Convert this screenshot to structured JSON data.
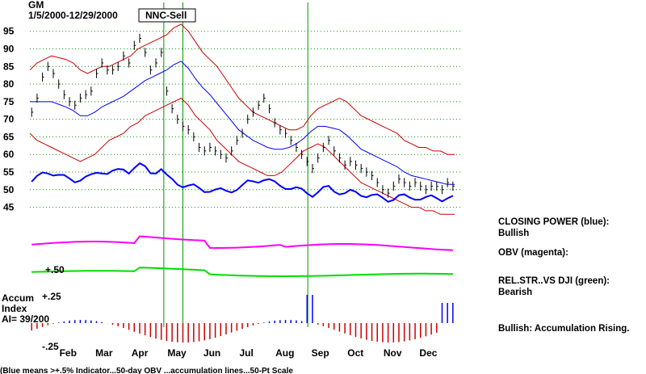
{
  "chart_data": {
    "type": "line",
    "title": "GM",
    "subtitle": "1/5/2000-12/29/2000",
    "signal_label": "NNC-Sell",
    "y_ticks": [
      95,
      90,
      85,
      80,
      75,
      70,
      65,
      60,
      55,
      50,
      45
    ],
    "ylim": [
      41,
      97
    ],
    "x_ticks": [
      "Feb",
      "Mar",
      "Apr",
      "May",
      "Jun",
      "Jul",
      "Aug",
      "Sep",
      "Oct",
      "Nov",
      "Dec"
    ],
    "x_months": [
      1,
      2,
      3,
      4,
      5,
      6,
      7,
      8,
      9,
      10,
      11
    ],
    "xlim": [
      0,
      12
    ],
    "price_days": [
      0.05,
      0.2,
      0.35,
      0.5,
      0.65,
      0.8,
      0.95,
      1.1,
      1.25,
      1.4,
      1.55,
      1.7,
      1.85,
      2.0,
      2.15,
      2.3,
      2.45,
      2.6,
      2.75,
      2.9,
      3.05,
      3.2,
      3.35,
      3.5,
      3.65,
      3.8,
      3.95,
      4.1,
      4.25,
      4.4,
      4.55,
      4.7,
      4.85,
      5.0,
      5.15,
      5.3,
      5.45,
      5.6,
      5.75,
      5.9,
      6.05,
      6.2,
      6.35,
      6.5,
      6.65,
      6.8,
      6.95,
      7.1,
      7.25,
      7.4,
      7.55,
      7.7,
      7.85,
      8.0,
      8.15,
      8.3,
      8.45,
      8.6,
      8.75,
      8.9,
      9.05,
      9.2,
      9.35,
      9.5,
      9.65,
      9.8,
      9.95,
      10.1,
      10.25,
      10.4,
      10.55,
      10.7,
      10.85,
      11.0,
      11.15,
      11.3,
      11.45,
      11.6,
      11.75
    ],
    "price_close": [
      72,
      76,
      82,
      85,
      83,
      80,
      77,
      75,
      74,
      76,
      77,
      78,
      83,
      86,
      84,
      84,
      85,
      88,
      86,
      91,
      93,
      89,
      84,
      86,
      89,
      78,
      73,
      70,
      68,
      67,
      65,
      62,
      61,
      62,
      61,
      60,
      59,
      61,
      64,
      66,
      70,
      72,
      74,
      76,
      73,
      69,
      67,
      66,
      64,
      62,
      60,
      58,
      56,
      59,
      62,
      64,
      61,
      59,
      57,
      58,
      57,
      56,
      55,
      54,
      52,
      50,
      49,
      51,
      53,
      52,
      51,
      52,
      51,
      50,
      51,
      51,
      50,
      52,
      51
    ],
    "upper_band": [
      84,
      86,
      87,
      88,
      87.5,
      87,
      86,
      84,
      83,
      84,
      85,
      85,
      86,
      87,
      88,
      90,
      91,
      92,
      93,
      94,
      96,
      97,
      95,
      92,
      89,
      87,
      85,
      82,
      79,
      76,
      74,
      72,
      71,
      70,
      69,
      68,
      67,
      67,
      68,
      71,
      73,
      74,
      75,
      76,
      75,
      73,
      71,
      70,
      69,
      68,
      67,
      66,
      64,
      63,
      62,
      62,
      61,
      61,
      60,
      60
    ],
    "lower_band": [
      66,
      64,
      63,
      62,
      61,
      60,
      59,
      58,
      59,
      60,
      62,
      64,
      65,
      66,
      68,
      69,
      71,
      72,
      73,
      74,
      75,
      76,
      74,
      71,
      69,
      67,
      64,
      62,
      60,
      58,
      57,
      56,
      55,
      54,
      54,
      55,
      57,
      59,
      61,
      62,
      63,
      62,
      60,
      58,
      56,
      54,
      52,
      51,
      50,
      49,
      48,
      47,
      46,
      45,
      45,
      44,
      44,
      43,
      43,
      43
    ],
    "panel_labels": {
      "accum_title": "Accum",
      "accum_sub": "Index",
      "ai_value": "AI= 39/200",
      "plus25": "+.25",
      "minus25": "-.25",
      "plus50": "+.50"
    },
    "side_notes": [
      {
        "title": "CLOSING POWER (blue):",
        "value": "Bullish"
      },
      {
        "title": "OBV (magenta):",
        "value": ""
      },
      {
        "title": "REL.STR..VS DJI (green):",
        "value": "Bearish"
      },
      {
        "title": "Bullish: Accumulation Rising.",
        "value": ""
      }
    ],
    "footer": "(Blue means >+.5% Indicator...50-day OBV ...accumulation lines...50-Pt Scale",
    "signal_month_positions": [
      3.72,
      4.25,
      7.72
    ],
    "colors": {
      "price": "#000000",
      "bands": "#cc0000",
      "moving_avg": "#0000ff",
      "closing_power": "#0000ff",
      "obv": "#ff00ff",
      "relstr": "#00dd00",
      "grid": "#009900",
      "signal_line": "#009900",
      "accum_red": "#cc0000",
      "accum_blue": "#0000ff"
    }
  }
}
